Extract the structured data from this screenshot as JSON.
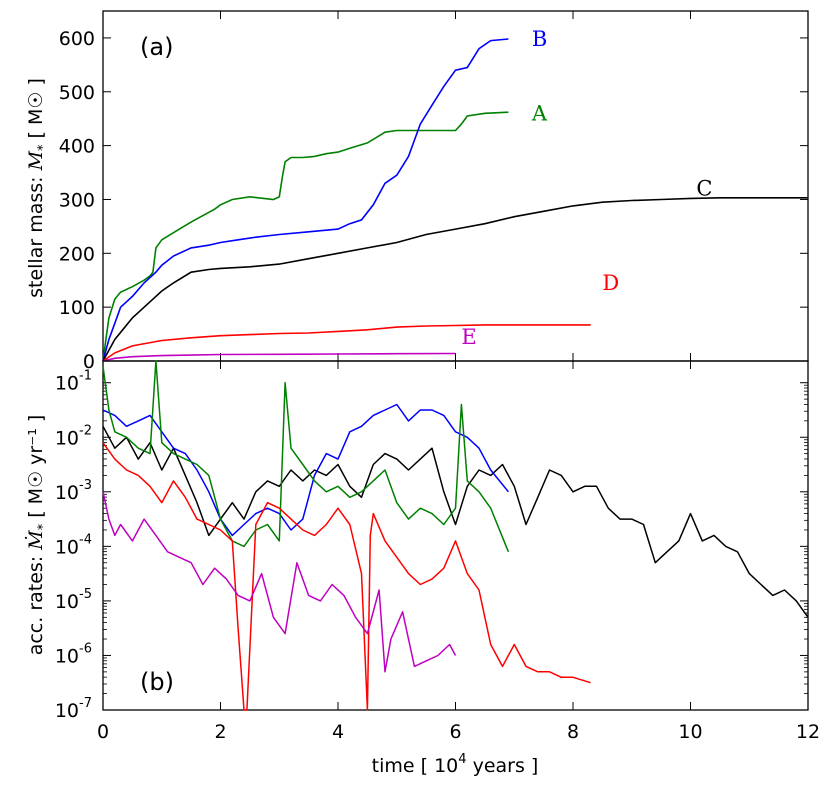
{
  "chart_data": [
    {
      "type": "line",
      "panel_label": "(a)",
      "ylabel": "stellar mass: M* [ M☉ ]",
      "ylabel_main": "stellar mass: ",
      "ylabel_sym": "M",
      "ylabel_sub": "*",
      "ylabel_unit": "[ M☉ ]",
      "xlim": [
        0,
        12
      ],
      "ylim": [
        0,
        650
      ],
      "yticks": [
        0,
        100,
        200,
        300,
        400,
        500,
        600
      ],
      "ytick_labels": [
        "0",
        "100",
        "200",
        "300",
        "400",
        "500",
        "600"
      ],
      "series": [
        {
          "name": "A",
          "color": "#008000",
          "label_at": [
            7.3,
            460
          ],
          "x": [
            0,
            0.05,
            0.1,
            0.2,
            0.3,
            0.5,
            0.7,
            0.8,
            0.85,
            0.9,
            1.0,
            1.3,
            1.5,
            1.7,
            1.9,
            2.0,
            2.2,
            2.5,
            2.9,
            3.0,
            3.05,
            3.1,
            3.2,
            3.4,
            3.6,
            3.8,
            4.0,
            4.2,
            4.5,
            4.8,
            5.0,
            5.5,
            6.0,
            6.1,
            6.2,
            6.5,
            6.9
          ],
          "y": [
            0,
            40,
            80,
            115,
            128,
            138,
            150,
            158,
            165,
            210,
            225,
            245,
            258,
            270,
            282,
            290,
            300,
            305,
            300,
            305,
            340,
            370,
            378,
            378,
            380,
            385,
            388,
            395,
            405,
            425,
            428,
            428,
            428,
            440,
            455,
            460,
            462
          ]
        },
        {
          "name": "B",
          "color": "#0000ff",
          "label_at": [
            7.3,
            598
          ],
          "x": [
            0,
            0.1,
            0.2,
            0.3,
            0.5,
            0.7,
            0.9,
            1.0,
            1.2,
            1.5,
            1.8,
            2.0,
            2.3,
            2.6,
            3.0,
            3.5,
            4.0,
            4.2,
            4.4,
            4.6,
            4.8,
            5.0,
            5.2,
            5.4,
            5.6,
            5.8,
            6.0,
            6.2,
            6.4,
            6.6,
            6.9
          ],
          "y": [
            0,
            40,
            70,
            100,
            120,
            145,
            165,
            178,
            195,
            210,
            215,
            220,
            225,
            230,
            235,
            240,
            245,
            255,
            262,
            290,
            330,
            345,
            380,
            440,
            475,
            510,
            540,
            545,
            580,
            595,
            598
          ]
        },
        {
          "name": "C",
          "color": "#000000",
          "label_at": [
            10.1,
            320
          ],
          "x": [
            0,
            0.2,
            0.5,
            0.8,
            1.0,
            1.2,
            1.5,
            1.8,
            2.0,
            2.5,
            3.0,
            3.5,
            4.0,
            4.5,
            5.0,
            5.5,
            6.0,
            6.5,
            7.0,
            7.5,
            8.0,
            8.5,
            9.0,
            9.5,
            10.0,
            10.5,
            11.0,
            11.5,
            12.0
          ],
          "y": [
            0,
            40,
            80,
            110,
            130,
            145,
            165,
            170,
            172,
            175,
            180,
            190,
            200,
            210,
            220,
            235,
            245,
            255,
            268,
            278,
            288,
            295,
            298,
            300,
            302,
            303,
            303,
            303,
            303
          ]
        },
        {
          "name": "D",
          "color": "#ff0000",
          "label_at": [
            8.5,
            145
          ],
          "x": [
            0,
            0.2,
            0.5,
            1.0,
            1.5,
            2.0,
            2.5,
            3.0,
            3.5,
            4.0,
            4.5,
            5.0,
            5.5,
            6.0,
            6.5,
            7.0,
            7.5,
            8.0,
            8.3
          ],
          "y": [
            0,
            15,
            28,
            38,
            43,
            47,
            49,
            51,
            52,
            55,
            58,
            63,
            65,
            66,
            67,
            67,
            67,
            67,
            67
          ]
        },
        {
          "name": "E",
          "color": "#c000c0",
          "label_at": [
            6.1,
            45
          ],
          "x": [
            0,
            0.2,
            0.5,
            1.0,
            1.5,
            2.0,
            3.0,
            4.0,
            5.0,
            6.0
          ],
          "y": [
            0,
            5,
            8,
            10,
            11,
            12,
            12.5,
            13,
            13.5,
            14
          ]
        }
      ]
    },
    {
      "type": "line",
      "panel_label": "(b)",
      "ylabel": "acc. rates: Ṁ* [ M☉ yr⁻¹ ]",
      "ylabel_main": "acc. rates: ",
      "ylabel_sym": "Ṁ",
      "ylabel_sub": "*",
      "ylabel_unit": "[ M☉ yr⁻¹ ]",
      "xlabel": "time [ 10⁴ years ]",
      "xlabel_main": "time [ 10",
      "xlabel_sup": "4",
      "xlabel_tail": "  years ]",
      "yscale": "log",
      "xlim": [
        0,
        12
      ],
      "ylim": [
        1e-07,
        0.25
      ],
      "xticks": [
        0,
        2,
        4,
        6,
        8,
        10,
        12
      ],
      "xtick_labels": [
        "0",
        "2",
        "4",
        "6",
        "8",
        "10",
        "12"
      ],
      "yticks": [
        -7,
        -6,
        -5,
        -4,
        -3,
        -2,
        -1
      ],
      "ytick_labels": [
        "10",
        "10",
        "10",
        "10",
        "10",
        "10",
        "10"
      ],
      "ytick_exponents": [
        "-7",
        "-6",
        "-5",
        "-4",
        "-3",
        "-2",
        "-1"
      ],
      "series": [
        {
          "name": "C",
          "color": "#000000",
          "log10_values": true,
          "x": [
            0,
            0.2,
            0.4,
            0.6,
            0.8,
            1.0,
            1.2,
            1.4,
            1.6,
            1.8,
            2.0,
            2.2,
            2.4,
            2.6,
            2.8,
            3.0,
            3.2,
            3.4,
            3.6,
            3.8,
            4.0,
            4.2,
            4.4,
            4.6,
            4.8,
            5.0,
            5.2,
            5.4,
            5.6,
            5.8,
            6.0,
            6.2,
            6.4,
            6.6,
            6.8,
            7.0,
            7.2,
            7.4,
            7.6,
            7.8,
            8.0,
            8.2,
            8.4,
            8.6,
            8.8,
            9.0,
            9.2,
            9.4,
            9.6,
            9.8,
            10.0,
            10.2,
            10.4,
            10.6,
            10.8,
            11.0,
            11.2,
            11.4,
            11.6,
            11.8,
            12.0
          ],
          "y": [
            -1.8,
            -2.2,
            -2.0,
            -2.4,
            -2.1,
            -2.6,
            -2.2,
            -2.7,
            -3.2,
            -3.8,
            -3.5,
            -3.2,
            -3.5,
            -3.0,
            -2.8,
            -2.9,
            -2.6,
            -2.8,
            -2.6,
            -2.7,
            -2.5,
            -2.9,
            -3.1,
            -2.5,
            -2.3,
            -2.4,
            -2.6,
            -2.4,
            -2.2,
            -3.0,
            -3.6,
            -2.9,
            -2.6,
            -2.7,
            -2.5,
            -2.9,
            -3.6,
            -3.1,
            -2.6,
            -2.7,
            -3.0,
            -2.9,
            -2.9,
            -3.3,
            -3.5,
            -3.5,
            -3.6,
            -4.3,
            -4.1,
            -3.9,
            -3.4,
            -3.9,
            -3.8,
            -4.0,
            -4.1,
            -4.5,
            -4.7,
            -4.9,
            -4.8,
            -5.0,
            -5.3
          ]
        },
        {
          "name": "B",
          "color": "#0000ff",
          "log10_values": true,
          "x": [
            0,
            0.2,
            0.4,
            0.6,
            0.8,
            1.0,
            1.2,
            1.4,
            1.6,
            1.8,
            2.0,
            2.2,
            2.4,
            2.6,
            2.8,
            3.0,
            3.2,
            3.4,
            3.6,
            3.8,
            4.0,
            4.2,
            4.4,
            4.6,
            4.8,
            5.0,
            5.2,
            5.4,
            5.6,
            5.8,
            6.0,
            6.2,
            6.4,
            6.6,
            6.9
          ],
          "y": [
            -1.5,
            -1.6,
            -1.8,
            -1.7,
            -1.6,
            -1.9,
            -2.2,
            -2.3,
            -2.6,
            -3.0,
            -3.5,
            -3.8,
            -3.6,
            -3.4,
            -3.3,
            -3.4,
            -3.7,
            -3.5,
            -2.7,
            -2.3,
            -2.4,
            -1.9,
            -1.8,
            -1.6,
            -1.5,
            -1.4,
            -1.7,
            -1.5,
            -1.5,
            -1.6,
            -1.9,
            -2.0,
            -2.2,
            -2.6,
            -3.0
          ]
        },
        {
          "name": "A",
          "color": "#008000",
          "log10_values": true,
          "x": [
            0,
            0.1,
            0.2,
            0.4,
            0.6,
            0.8,
            0.9,
            1.0,
            1.2,
            1.4,
            1.6,
            1.8,
            2.0,
            2.2,
            2.4,
            2.6,
            2.8,
            3.0,
            3.1,
            3.2,
            3.4,
            3.6,
            3.8,
            4.0,
            4.2,
            4.4,
            4.6,
            4.8,
            5.0,
            5.2,
            5.4,
            5.6,
            5.8,
            6.0,
            6.1,
            6.2,
            6.4,
            6.6,
            6.9
          ],
          "y": [
            -0.7,
            -1.5,
            -1.9,
            -2.0,
            -2.2,
            -2.3,
            -0.6,
            -2.1,
            -2.3,
            -2.4,
            -2.5,
            -2.7,
            -3.5,
            -3.9,
            -4.0,
            -3.7,
            -3.6,
            -3.9,
            -1.0,
            -2.2,
            -2.5,
            -2.8,
            -3.0,
            -2.9,
            -3.1,
            -3.0,
            -2.8,
            -2.6,
            -3.2,
            -3.5,
            -3.3,
            -3.4,
            -3.6,
            -3.3,
            -1.4,
            -2.8,
            -3.0,
            -3.3,
            -4.1
          ]
        },
        {
          "name": "D",
          "color": "#ff0000",
          "log10_values": true,
          "x": [
            0,
            0.2,
            0.4,
            0.6,
            0.8,
            1.0,
            1.2,
            1.4,
            1.6,
            1.8,
            2.0,
            2.2,
            2.3,
            2.4,
            2.45,
            2.6,
            2.8,
            3.0,
            3.2,
            3.4,
            3.6,
            3.8,
            4.0,
            4.2,
            4.4,
            4.5,
            4.55,
            4.6,
            4.8,
            5.0,
            5.2,
            5.4,
            5.6,
            5.8,
            6.0,
            6.2,
            6.4,
            6.6,
            6.8,
            7.0,
            7.2,
            7.4,
            7.6,
            7.8,
            8.0,
            8.3
          ],
          "y": [
            -2.1,
            -2.4,
            -2.6,
            -2.7,
            -2.9,
            -3.2,
            -2.8,
            -3.1,
            -3.5,
            -3.6,
            -3.7,
            -3.9,
            -5.5,
            -7.0,
            -7.0,
            -3.6,
            -3.2,
            -3.3,
            -3.5,
            -3.7,
            -3.8,
            -3.6,
            -3.3,
            -3.6,
            -4.5,
            -7.0,
            -3.8,
            -3.4,
            -3.9,
            -4.2,
            -4.5,
            -4.7,
            -4.6,
            -4.4,
            -3.9,
            -4.5,
            -4.8,
            -5.8,
            -6.2,
            -5.8,
            -6.2,
            -6.3,
            -6.3,
            -6.4,
            -6.4,
            -6.5
          ]
        },
        {
          "name": "E",
          "color": "#c000c0",
          "log10_values": true,
          "x": [
            0,
            0.1,
            0.2,
            0.3,
            0.5,
            0.7,
            0.9,
            1.1,
            1.3,
            1.5,
            1.7,
            1.9,
            2.1,
            2.3,
            2.5,
            2.7,
            2.9,
            3.1,
            3.3,
            3.5,
            3.7,
            3.9,
            4.1,
            4.3,
            4.5,
            4.7,
            4.8,
            4.9,
            5.1,
            5.3,
            5.5,
            5.7,
            5.9,
            6.0
          ],
          "y": [
            -3.0,
            -3.5,
            -3.8,
            -3.6,
            -3.9,
            -3.5,
            -3.8,
            -4.1,
            -4.2,
            -4.3,
            -4.7,
            -4.4,
            -4.6,
            -4.9,
            -5.0,
            -4.5,
            -5.3,
            -5.6,
            -4.3,
            -4.9,
            -5.0,
            -4.7,
            -4.9,
            -5.3,
            -5.6,
            -4.8,
            -6.3,
            -5.7,
            -5.2,
            -6.2,
            -6.1,
            -6.0,
            -5.8,
            -6.0
          ]
        }
      ]
    }
  ]
}
